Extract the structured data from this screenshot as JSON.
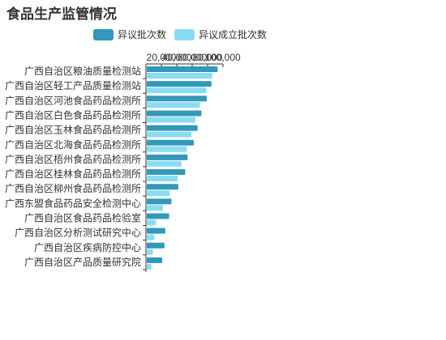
{
  "title": "食品生产监管情况",
  "chart_data": {
    "type": "bar",
    "orientation": "horizontal",
    "title": "食品生产监管情况",
    "categories": [
      "广西自治区粮油质量检测站",
      "广西自治区轻工产品质量检测站",
      "广西自治区河池食品药品检测所",
      "广西自治区白色食品药品检测所",
      "广西自治区玉林食品药品检测所",
      "广西自治区北海食品药品检测所",
      "广西自治区梧州食品药品检测所",
      "广西自治区桂林食品药品检测所",
      "广西自治区柳州食品药品检测所",
      "广西东盟食品药品安全检测中心",
      "广西自治区食品药品检验室",
      "广西自治区分析测试研究中心",
      "广西自治区疾病防控中心",
      "广西自治区产品质量研究院"
    ],
    "x_ticks": [
      "20,000",
      "40,000",
      "60,000",
      "80,000",
      "100,000"
    ],
    "xlim": [
      0,
      100000
    ],
    "series": [
      {
        "name": "异议批次数",
        "color": "#3398b9",
        "values": [
          92000,
          84000,
          78000,
          71000,
          66000,
          61000,
          53000,
          50000,
          41000,
          32000,
          29000,
          24000,
          23000,
          20000
        ]
      },
      {
        "name": "异议成立批次数",
        "color": "#8adcf2",
        "values": [
          85000,
          77000,
          69000,
          63000,
          58000,
          52000,
          45000,
          40000,
          30000,
          21000,
          12000,
          10000,
          8000,
          6000
        ]
      }
    ],
    "legend": "top",
    "grid": false
  }
}
